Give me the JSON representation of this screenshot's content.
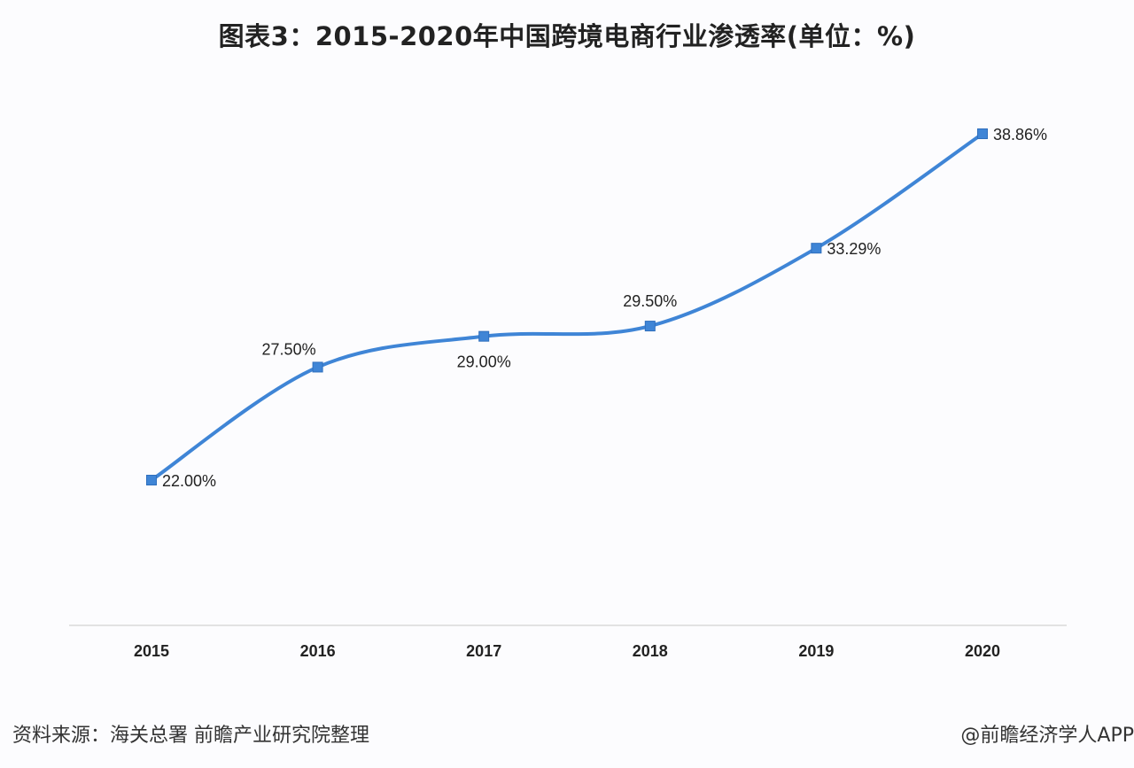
{
  "chart_data": {
    "type": "line",
    "title": "图表3：2015-2020年中国跨境电商行业渗透率(单位：%)",
    "categories": [
      "2015",
      "2016",
      "2017",
      "2018",
      "2019",
      "2020"
    ],
    "values": [
      22.0,
      27.5,
      29.0,
      29.5,
      33.29,
      38.86
    ],
    "data_labels": [
      "22.00%",
      "27.50%",
      "29.00%",
      "29.50%",
      "33.29%",
      "38.86%"
    ],
    "xlabel": "",
    "ylabel": "",
    "grid": false,
    "smooth": true,
    "marker": "square",
    "line_color": "#3f85d6"
  },
  "footer": {
    "source": "资料来源：海关总署 前瞻产业研究院整理",
    "credit": "@前瞻经济学人APP"
  }
}
